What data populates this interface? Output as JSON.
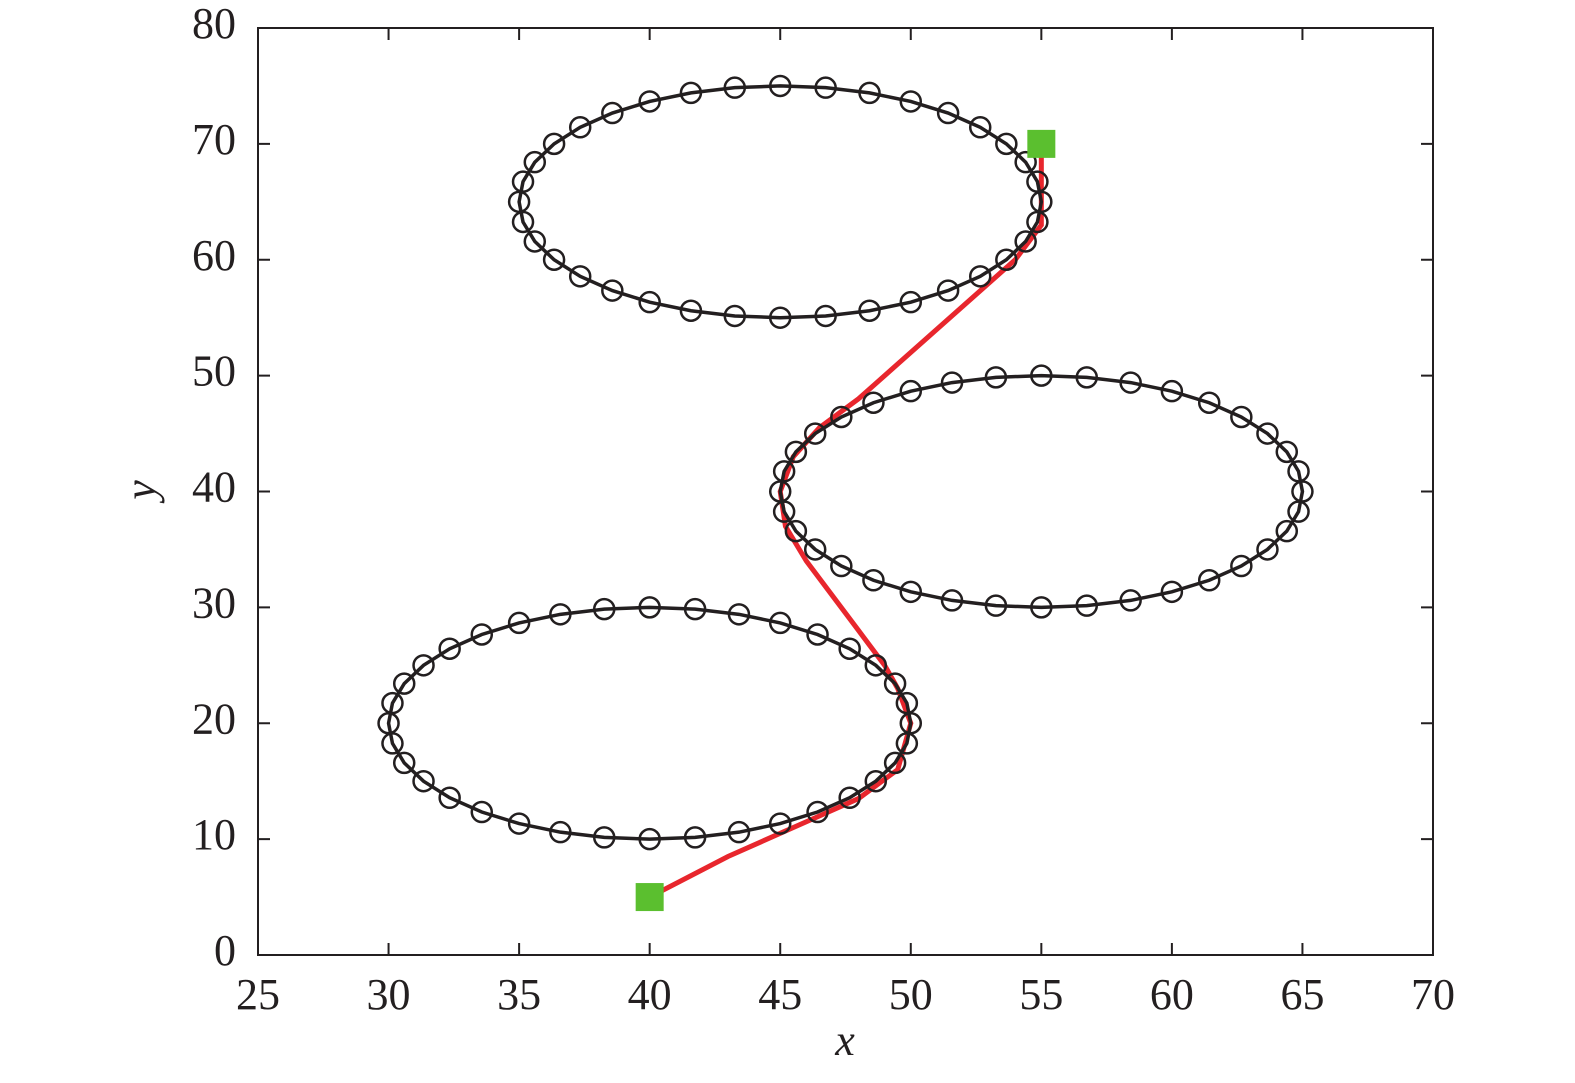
{
  "chart_data": {
    "type": "line",
    "xlabel": "x",
    "ylabel": "y",
    "xlim": [
      25,
      70
    ],
    "xticks": [
      25,
      30,
      35,
      40,
      45,
      50,
      55,
      60,
      65,
      70
    ],
    "ylim": [
      0,
      80
    ],
    "yticks": [
      0,
      10,
      20,
      30,
      40,
      50,
      60,
      70,
      80
    ],
    "series": [
      {
        "color": "#231f20",
        "line": true,
        "closed": true,
        "marker": "circle",
        "x": [
          55,
          54.85,
          54.4,
          53.66,
          52.66,
          51.43,
          50,
          48.42,
          46.74,
          45,
          43.26,
          41.58,
          40,
          38.57,
          37.34,
          36.34,
          35.6,
          35.15,
          35,
          35.15,
          35.6,
          36.34,
          37.34,
          38.57,
          40,
          41.58,
          43.26,
          45,
          46.74,
          48.42,
          50,
          51.43,
          52.66,
          53.66,
          54.4,
          54.85
        ],
        "y": [
          65,
          66.74,
          68.42,
          70,
          71.43,
          72.66,
          73.66,
          74.4,
          74.85,
          75,
          74.85,
          74.4,
          73.66,
          72.66,
          71.43,
          70,
          68.42,
          66.74,
          65,
          63.26,
          61.58,
          60,
          58.57,
          57.34,
          56.34,
          55.6,
          55.15,
          55,
          55.15,
          55.6,
          56.34,
          57.34,
          58.57,
          60,
          61.58,
          63.26
        ]
      },
      {
        "color": "#231f20",
        "line": true,
        "closed": true,
        "marker": "circle",
        "x": [
          65,
          64.85,
          64.4,
          63.66,
          62.66,
          61.43,
          60,
          58.42,
          56.74,
          55,
          53.26,
          51.58,
          50,
          48.57,
          47.34,
          46.34,
          45.6,
          45.15,
          45,
          45.15,
          45.6,
          46.34,
          47.34,
          48.57,
          50,
          51.58,
          53.26,
          55,
          56.74,
          58.42,
          60,
          61.43,
          62.66,
          63.66,
          64.4,
          64.85
        ],
        "y": [
          40,
          41.74,
          43.42,
          45,
          46.43,
          47.66,
          48.66,
          49.4,
          49.85,
          50,
          49.85,
          49.4,
          48.66,
          47.66,
          46.43,
          45,
          43.42,
          41.74,
          40,
          38.26,
          36.58,
          35,
          33.57,
          32.34,
          31.34,
          30.6,
          30.15,
          30,
          30.15,
          30.6,
          31.34,
          32.34,
          33.57,
          35,
          36.58,
          38.26
        ]
      },
      {
        "color": "#231f20",
        "line": true,
        "closed": true,
        "marker": "circle",
        "x": [
          50,
          49.85,
          49.4,
          48.66,
          47.66,
          46.43,
          45,
          43.42,
          41.74,
          40,
          38.26,
          36.58,
          35,
          33.57,
          32.34,
          31.34,
          30.6,
          30.15,
          30,
          30.15,
          30.6,
          31.34,
          32.34,
          33.57,
          35,
          36.58,
          38.26,
          40,
          41.74,
          43.42,
          45,
          46.43,
          47.66,
          48.66,
          49.4,
          49.85
        ],
        "y": [
          20,
          21.74,
          23.42,
          25,
          26.43,
          27.66,
          28.66,
          29.4,
          29.85,
          30,
          29.85,
          29.4,
          28.66,
          27.66,
          26.43,
          25,
          23.42,
          21.74,
          20,
          18.26,
          16.58,
          15,
          13.57,
          12.34,
          11.34,
          10.6,
          10.15,
          10,
          10.15,
          10.6,
          11.34,
          12.34,
          13.57,
          15,
          16.58,
          18.26
        ]
      },
      {
        "color": "#e8262d",
        "line": true,
        "closed": false,
        "marker": null,
        "x": [
          40,
          43,
          46,
          48,
          49.5,
          50,
          49.5,
          49,
          48,
          47,
          46,
          45.2,
          45,
          45.5,
          46.5,
          48,
          49.5,
          51,
          52.5,
          54,
          55,
          55,
          55
        ],
        "y": [
          5,
          8.5,
          11.5,
          13.5,
          16,
          20,
          23,
          25,
          28,
          31,
          34,
          37,
          40,
          43,
          45.5,
          48,
          51,
          54,
          57,
          60,
          63,
          66,
          70
        ]
      },
      {
        "color": "#5bbf2f",
        "line": false,
        "closed": false,
        "marker": "square",
        "x": [
          40,
          55
        ],
        "y": [
          5,
          70
        ]
      }
    ]
  }
}
